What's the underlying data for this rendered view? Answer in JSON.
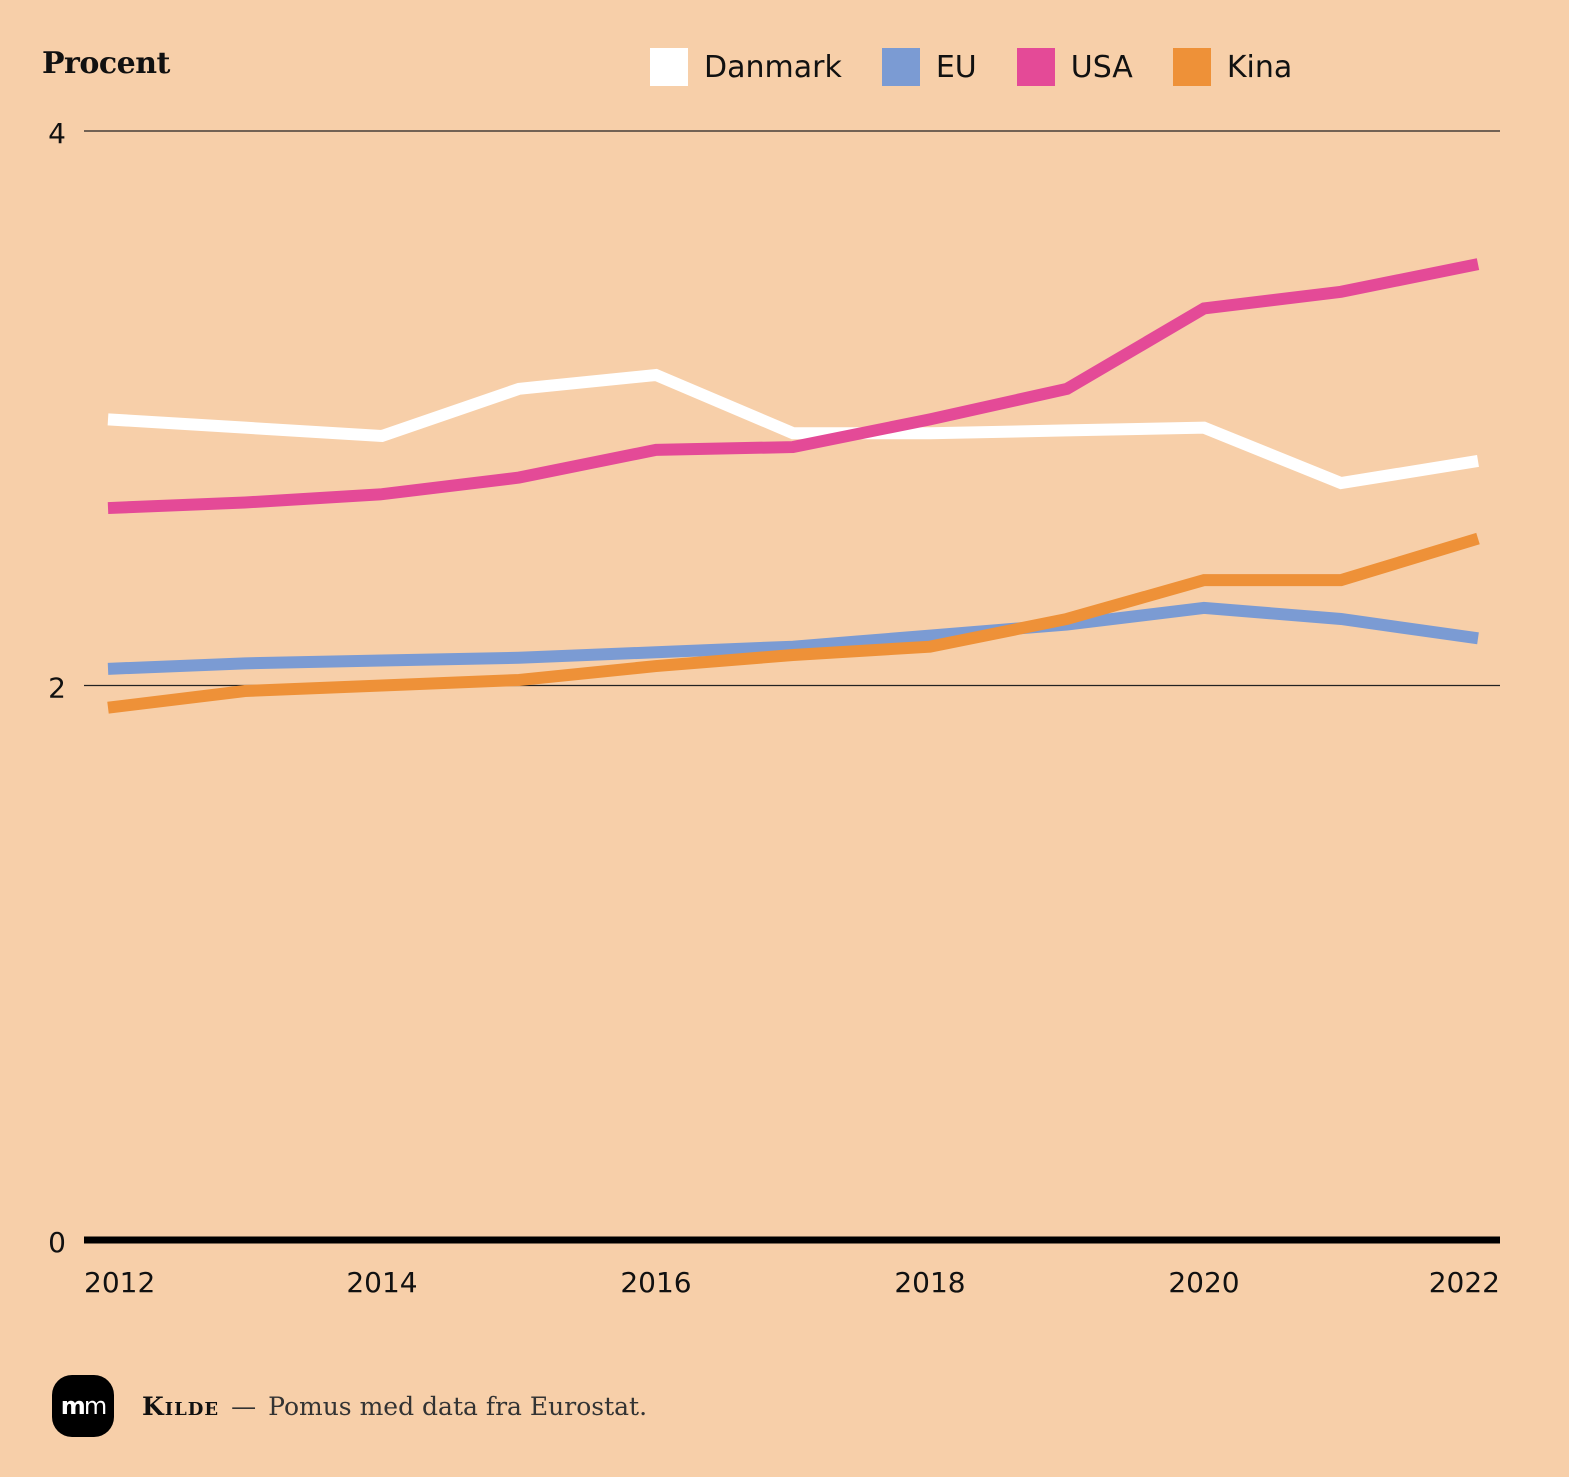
{
  "chart_data": {
    "type": "line",
    "ylabel": "Procent",
    "x": [
      2012,
      2013,
      2014,
      2015,
      2016,
      2017,
      2018,
      2019,
      2020,
      2021,
      2022
    ],
    "x_tick_labels": [
      "2012",
      "2014",
      "2016",
      "2018",
      "2020",
      "2022"
    ],
    "x_ticks": [
      2012,
      2014,
      2016,
      2018,
      2020,
      2022
    ],
    "y_tick_labels": [
      "0",
      "2",
      "4"
    ],
    "y_ticks": [
      0,
      2,
      4
    ],
    "ylim": [
      0,
      4
    ],
    "xlim": [
      2012,
      2022
    ],
    "grid": true,
    "legend_position": "top",
    "series": [
      {
        "name": "Danmark",
        "color": "#ffffff",
        "values": [
          2.96,
          2.93,
          2.9,
          3.07,
          3.12,
          2.91,
          2.91,
          2.92,
          2.93,
          2.73,
          2.81
        ]
      },
      {
        "name": "EU",
        "color": "#7b9bd3",
        "values": [
          2.06,
          2.08,
          2.09,
          2.1,
          2.12,
          2.14,
          2.18,
          2.22,
          2.28,
          2.24,
          2.17
        ]
      },
      {
        "name": "USA",
        "color": "#e44a97",
        "values": [
          2.64,
          2.66,
          2.69,
          2.75,
          2.85,
          2.86,
          2.96,
          3.07,
          3.36,
          3.42,
          3.52
        ]
      },
      {
        "name": "Kina",
        "color": "#ee9138",
        "values": [
          1.92,
          1.98,
          2.0,
          2.02,
          2.07,
          2.11,
          2.14,
          2.24,
          2.38,
          2.38,
          2.53
        ]
      }
    ]
  },
  "source": {
    "label": "Kilde",
    "dash": "—",
    "text": "Pomus med data fra Eurostat."
  },
  "logo": {
    "text_bold": "m",
    "text_light": "m"
  }
}
